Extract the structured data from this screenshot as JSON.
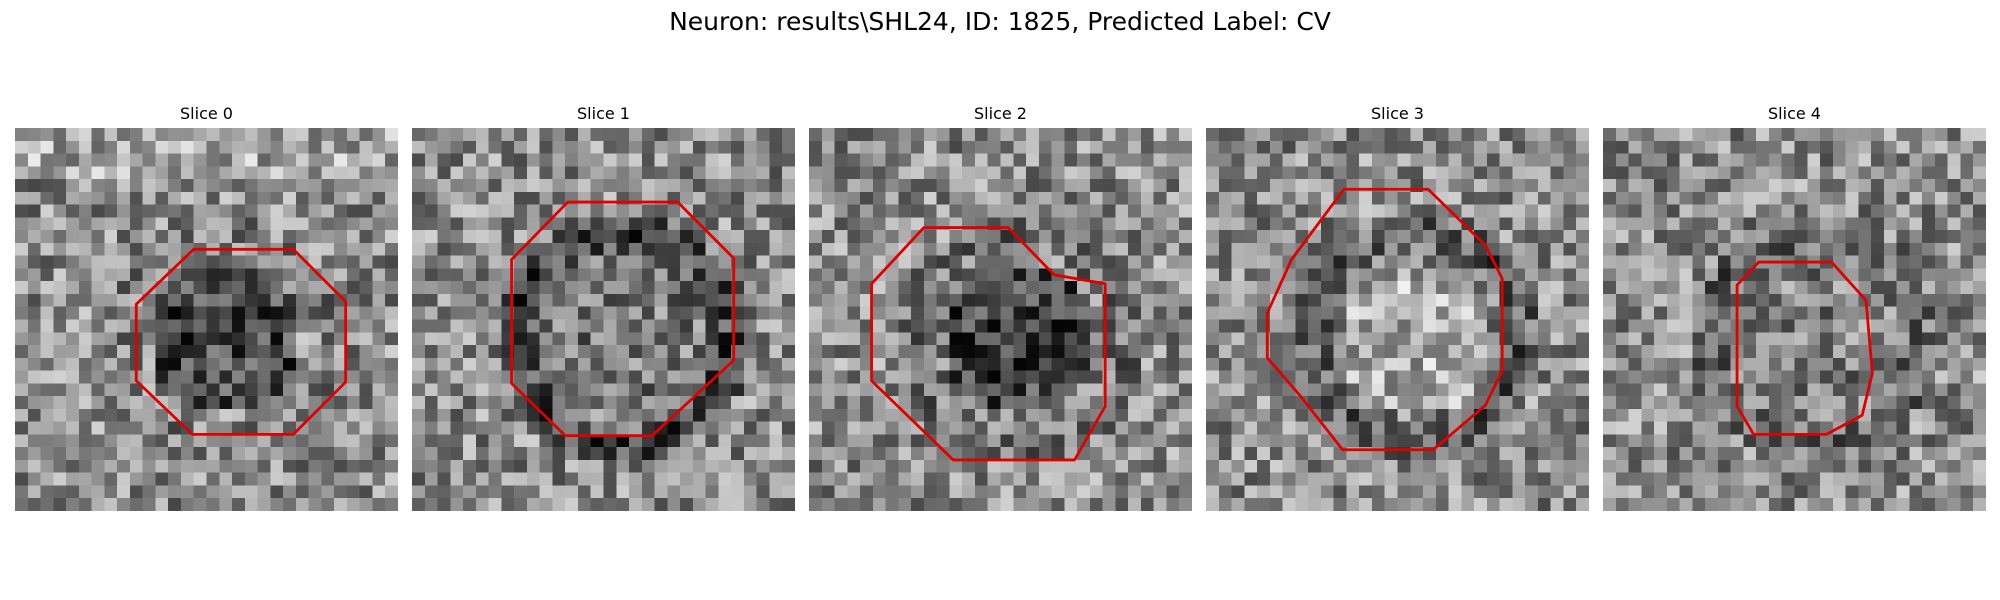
{
  "figure": {
    "title": "Neuron: results\\SHL24, ID: 1825, Predicted Label: CV"
  },
  "outline_color": "#e00000",
  "colormap": "gray",
  "grid_size": 30,
  "panels": [
    {
      "label": "Slice 0",
      "seed": 11,
      "outline": [
        [
          14,
          9.5
        ],
        [
          21.8,
          9.5
        ],
        [
          25.9,
          13.6
        ],
        [
          25.9,
          19.9
        ],
        [
          21.8,
          24
        ],
        [
          13.9,
          24
        ],
        [
          9.5,
          19.8
        ],
        [
          9.5,
          13.8
        ]
      ],
      "center_dark": 0.28,
      "ring": 0.05,
      "bright_top": true
    },
    {
      "label": "Slice 1",
      "seed": 23,
      "outline": [
        [
          12.2,
          5.8
        ],
        [
          20.8,
          5.8
        ],
        [
          25.2,
          10.2
        ],
        [
          25.2,
          18.2
        ],
        [
          18.8,
          24.1
        ],
        [
          12,
          24.1
        ],
        [
          7.8,
          20
        ],
        [
          7.8,
          10.3
        ]
      ],
      "center_dark": 0.08,
      "ring": 0.32,
      "bright_top": false
    },
    {
      "label": "Slice 2",
      "seed": 37,
      "outline": [
        [
          9,
          7.8
        ],
        [
          15.6,
          7.8
        ],
        [
          19.2,
          11.5
        ],
        [
          23.2,
          12.2
        ],
        [
          23.2,
          21.8
        ],
        [
          20.8,
          26
        ],
        [
          11.3,
          26
        ],
        [
          4.9,
          19.8
        ],
        [
          4.9,
          12.2
        ]
      ],
      "center_dark": 0.3,
      "ring": 0.12,
      "bright_top": false
    },
    {
      "label": "Slice 3",
      "seed": 53,
      "outline": [
        [
          10.8,
          4.8
        ],
        [
          17.4,
          4.8
        ],
        [
          21.9,
          9.2
        ],
        [
          23.2,
          11.8
        ],
        [
          23.2,
          19
        ],
        [
          21.9,
          21.7
        ],
        [
          17.8,
          25.2
        ],
        [
          10.7,
          25.2
        ],
        [
          7.4,
          21
        ],
        [
          4.8,
          18
        ],
        [
          4.8,
          14.5
        ],
        [
          6.7,
          10.3
        ]
      ],
      "center_dark": -0.12,
      "ring": 0.22,
      "bright_top": false
    },
    {
      "label": "Slice 4",
      "seed": 71,
      "outline": [
        [
          12.2,
          10.5
        ],
        [
          17.9,
          10.5
        ],
        [
          20.6,
          13.5
        ],
        [
          21.1,
          19.2
        ],
        [
          20.3,
          22.5
        ],
        [
          17.5,
          24
        ],
        [
          11.8,
          24
        ],
        [
          10.5,
          21.8
        ],
        [
          10.5,
          12.3
        ]
      ],
      "center_dark": 0.05,
      "ring": 0.18,
      "bright_top": false
    }
  ]
}
